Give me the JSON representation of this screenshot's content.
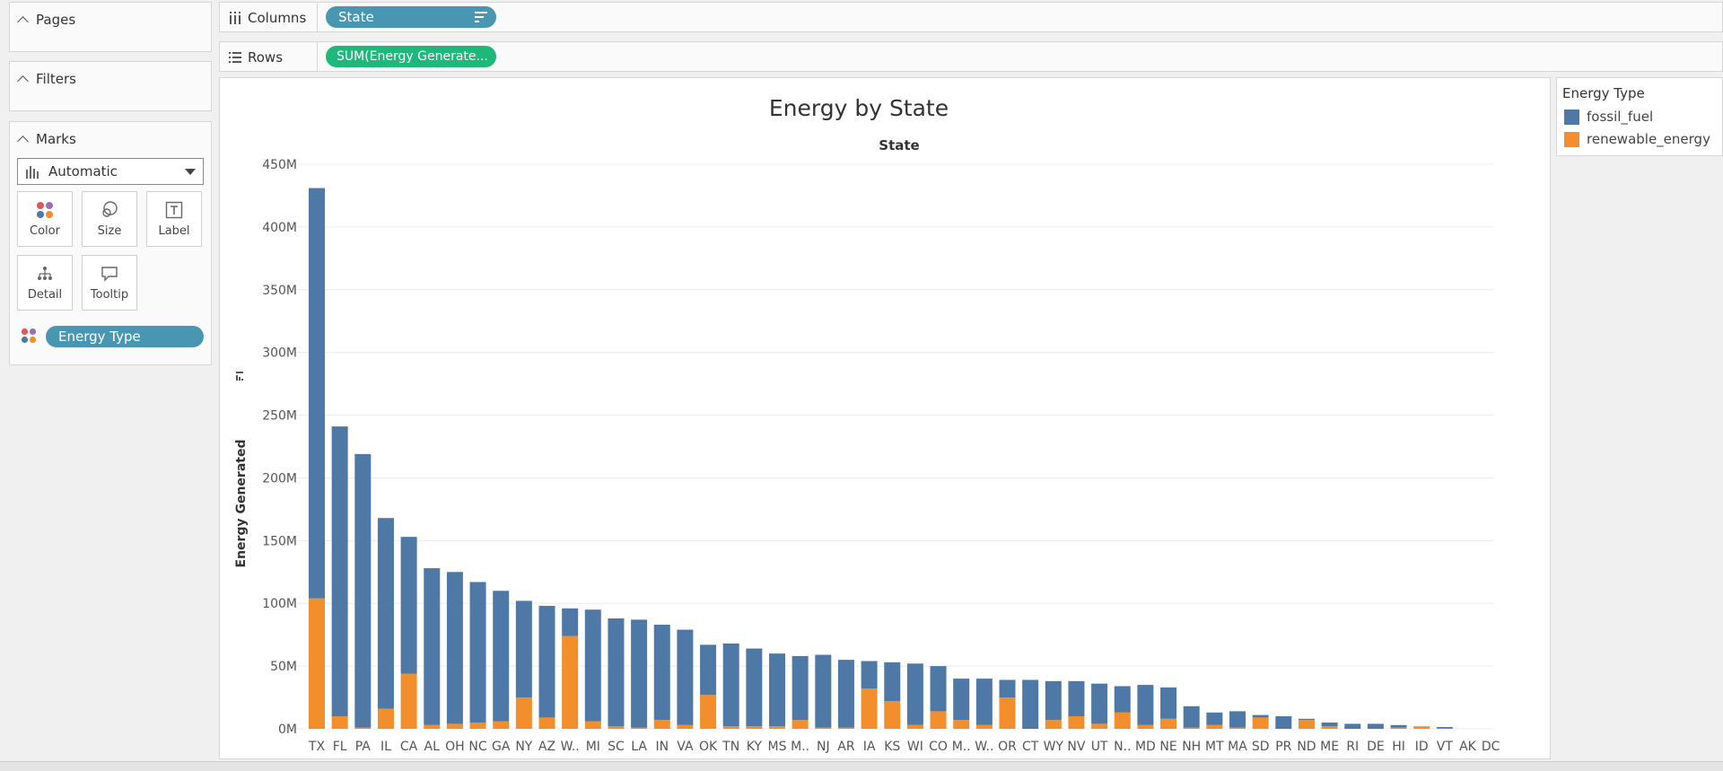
{
  "pages": {
    "title": "Pages"
  },
  "filters": {
    "title": "Filters"
  },
  "marks": {
    "title": "Marks",
    "mark_type": "Automatic",
    "buttons": {
      "color": "Color",
      "size": "Size",
      "label": "Label",
      "detail": "Detail",
      "tooltip": "Tooltip"
    },
    "color_pill": "Energy Type"
  },
  "shelves": {
    "columns_label": "Columns",
    "columns_pill": "State",
    "rows_label": "Rows",
    "rows_pill": "SUM(Energy Generate..."
  },
  "legend": {
    "title": "Energy Type",
    "items": [
      {
        "label": "fossil_fuel",
        "color": "#4e79a7"
      },
      {
        "label": "renewable_energy",
        "color": "#f28e2b"
      }
    ]
  },
  "colors": {
    "pill_blue": "#4996b2",
    "pill_green": "#1db87a"
  },
  "chart_data": {
    "type": "bar",
    "stacked": true,
    "title": "Energy by State",
    "xlabel": "State",
    "ylabel": "Energy Generated",
    "ylim": [
      0,
      450000000
    ],
    "yticks": [
      {
        "value": 0,
        "label": "0M"
      },
      {
        "value": 50000000,
        "label": "50M"
      },
      {
        "value": 100000000,
        "label": "100M"
      },
      {
        "value": 150000000,
        "label": "150M"
      },
      {
        "value": 200000000,
        "label": "200M"
      },
      {
        "value": 250000000,
        "label": "250M"
      },
      {
        "value": 300000000,
        "label": "300M"
      },
      {
        "value": 350000000,
        "label": "350M"
      },
      {
        "value": 400000000,
        "label": "400M"
      },
      {
        "value": 450000000,
        "label": "450M"
      }
    ],
    "categories": [
      "TX",
      "FL",
      "PA",
      "IL",
      "CA",
      "AL",
      "OH",
      "NC",
      "GA",
      "NY",
      "AZ",
      "W..",
      "MI",
      "SC",
      "LA",
      "IN",
      "VA",
      "OK",
      "TN",
      "KY",
      "MS",
      "M..",
      "NJ",
      "AR",
      "IA",
      "KS",
      "WI",
      "CO",
      "M..",
      "W..",
      "OR",
      "CT",
      "WY",
      "NV",
      "UT",
      "N..",
      "MD",
      "NE",
      "NH",
      "MT",
      "MA",
      "SD",
      "PR",
      "ND",
      "ME",
      "RI",
      "DE",
      "HI",
      "ID",
      "VT",
      "AK",
      "DC"
    ],
    "series": [
      {
        "name": "renewable_energy",
        "color": "#f28e2b",
        "values": [
          104,
          10,
          1,
          16,
          44,
          3,
          4,
          5,
          6,
          25,
          9,
          74,
          6,
          2,
          1,
          7,
          3,
          27,
          2,
          2,
          2,
          7,
          1,
          1,
          32,
          22,
          3,
          14,
          7,
          3,
          25,
          0,
          7,
          10,
          4,
          13,
          3,
          8,
          1,
          3,
          1,
          9,
          0,
          7,
          2,
          0,
          0,
          1,
          2,
          0.2,
          0,
          0
        ]
      },
      {
        "name": "fossil_fuel",
        "color": "#4e79a7",
        "values": [
          327,
          231,
          218,
          152,
          109,
          125,
          121,
          112,
          104,
          77,
          89,
          22,
          89,
          86,
          86,
          76,
          76,
          40,
          66,
          62,
          58,
          51,
          58,
          54,
          22,
          31,
          49,
          36,
          33,
          37,
          14,
          39,
          31,
          28,
          32,
          21,
          32,
          25,
          17,
          10,
          13,
          2,
          10,
          1,
          3,
          4,
          4,
          2,
          0,
          1.2,
          0,
          0
        ]
      }
    ]
  }
}
